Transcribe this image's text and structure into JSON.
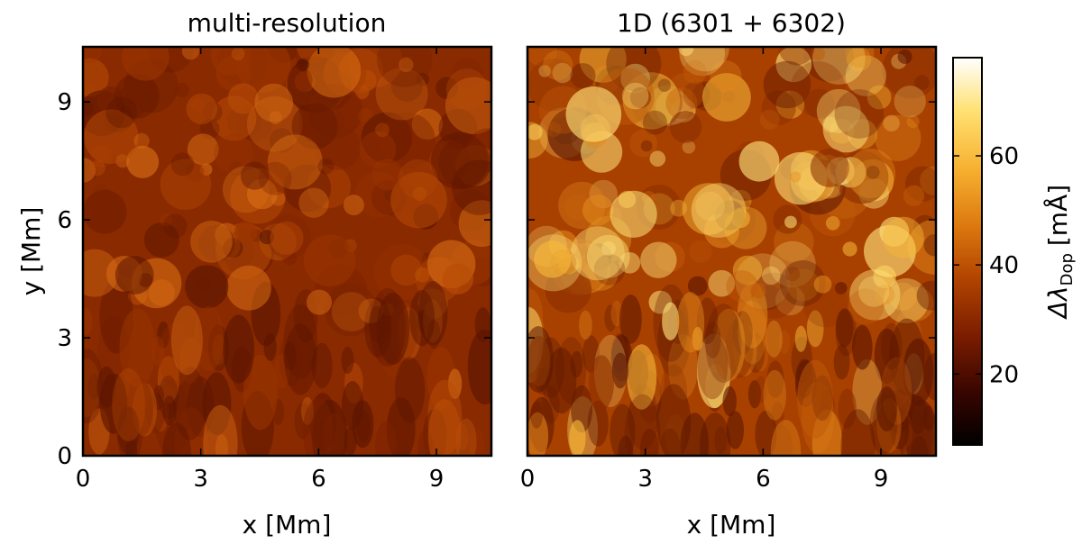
{
  "chart_data": {
    "type": "heatmap",
    "panels": [
      {
        "title": "multi-resolution",
        "xlabel": "x [Mm]",
        "ylabel": "y [Mm]",
        "xlim": [
          0,
          10.4
        ],
        "ylim": [
          0,
          10.4
        ],
        "xticks": [
          0,
          3,
          6,
          9
        ],
        "yticks": [
          0,
          3,
          6,
          9
        ],
        "value_range_visible": [
          12,
          55
        ]
      },
      {
        "title": "1D (6301 + 6302)",
        "xlabel": "x [Mm]",
        "xlim": [
          0,
          10.4
        ],
        "ylim": [
          0,
          10.4
        ],
        "xticks": [
          0,
          3,
          6,
          9
        ],
        "value_range_visible": [
          12,
          78
        ]
      }
    ],
    "colorbar": {
      "label": "Δλ_Dop [mÅ]",
      "label_main": "Δλ",
      "label_sub": "Dop",
      "label_unit": "[mÅ]",
      "range": [
        7,
        78
      ],
      "ticks": [
        20,
        40,
        60
      ],
      "colormap": "afmhot",
      "colors": [
        "#000000",
        "#3a0600",
        "#7a1c00",
        "#b24400",
        "#dd7a10",
        "#f6b030",
        "#ffe070",
        "#ffffff"
      ]
    }
  }
}
